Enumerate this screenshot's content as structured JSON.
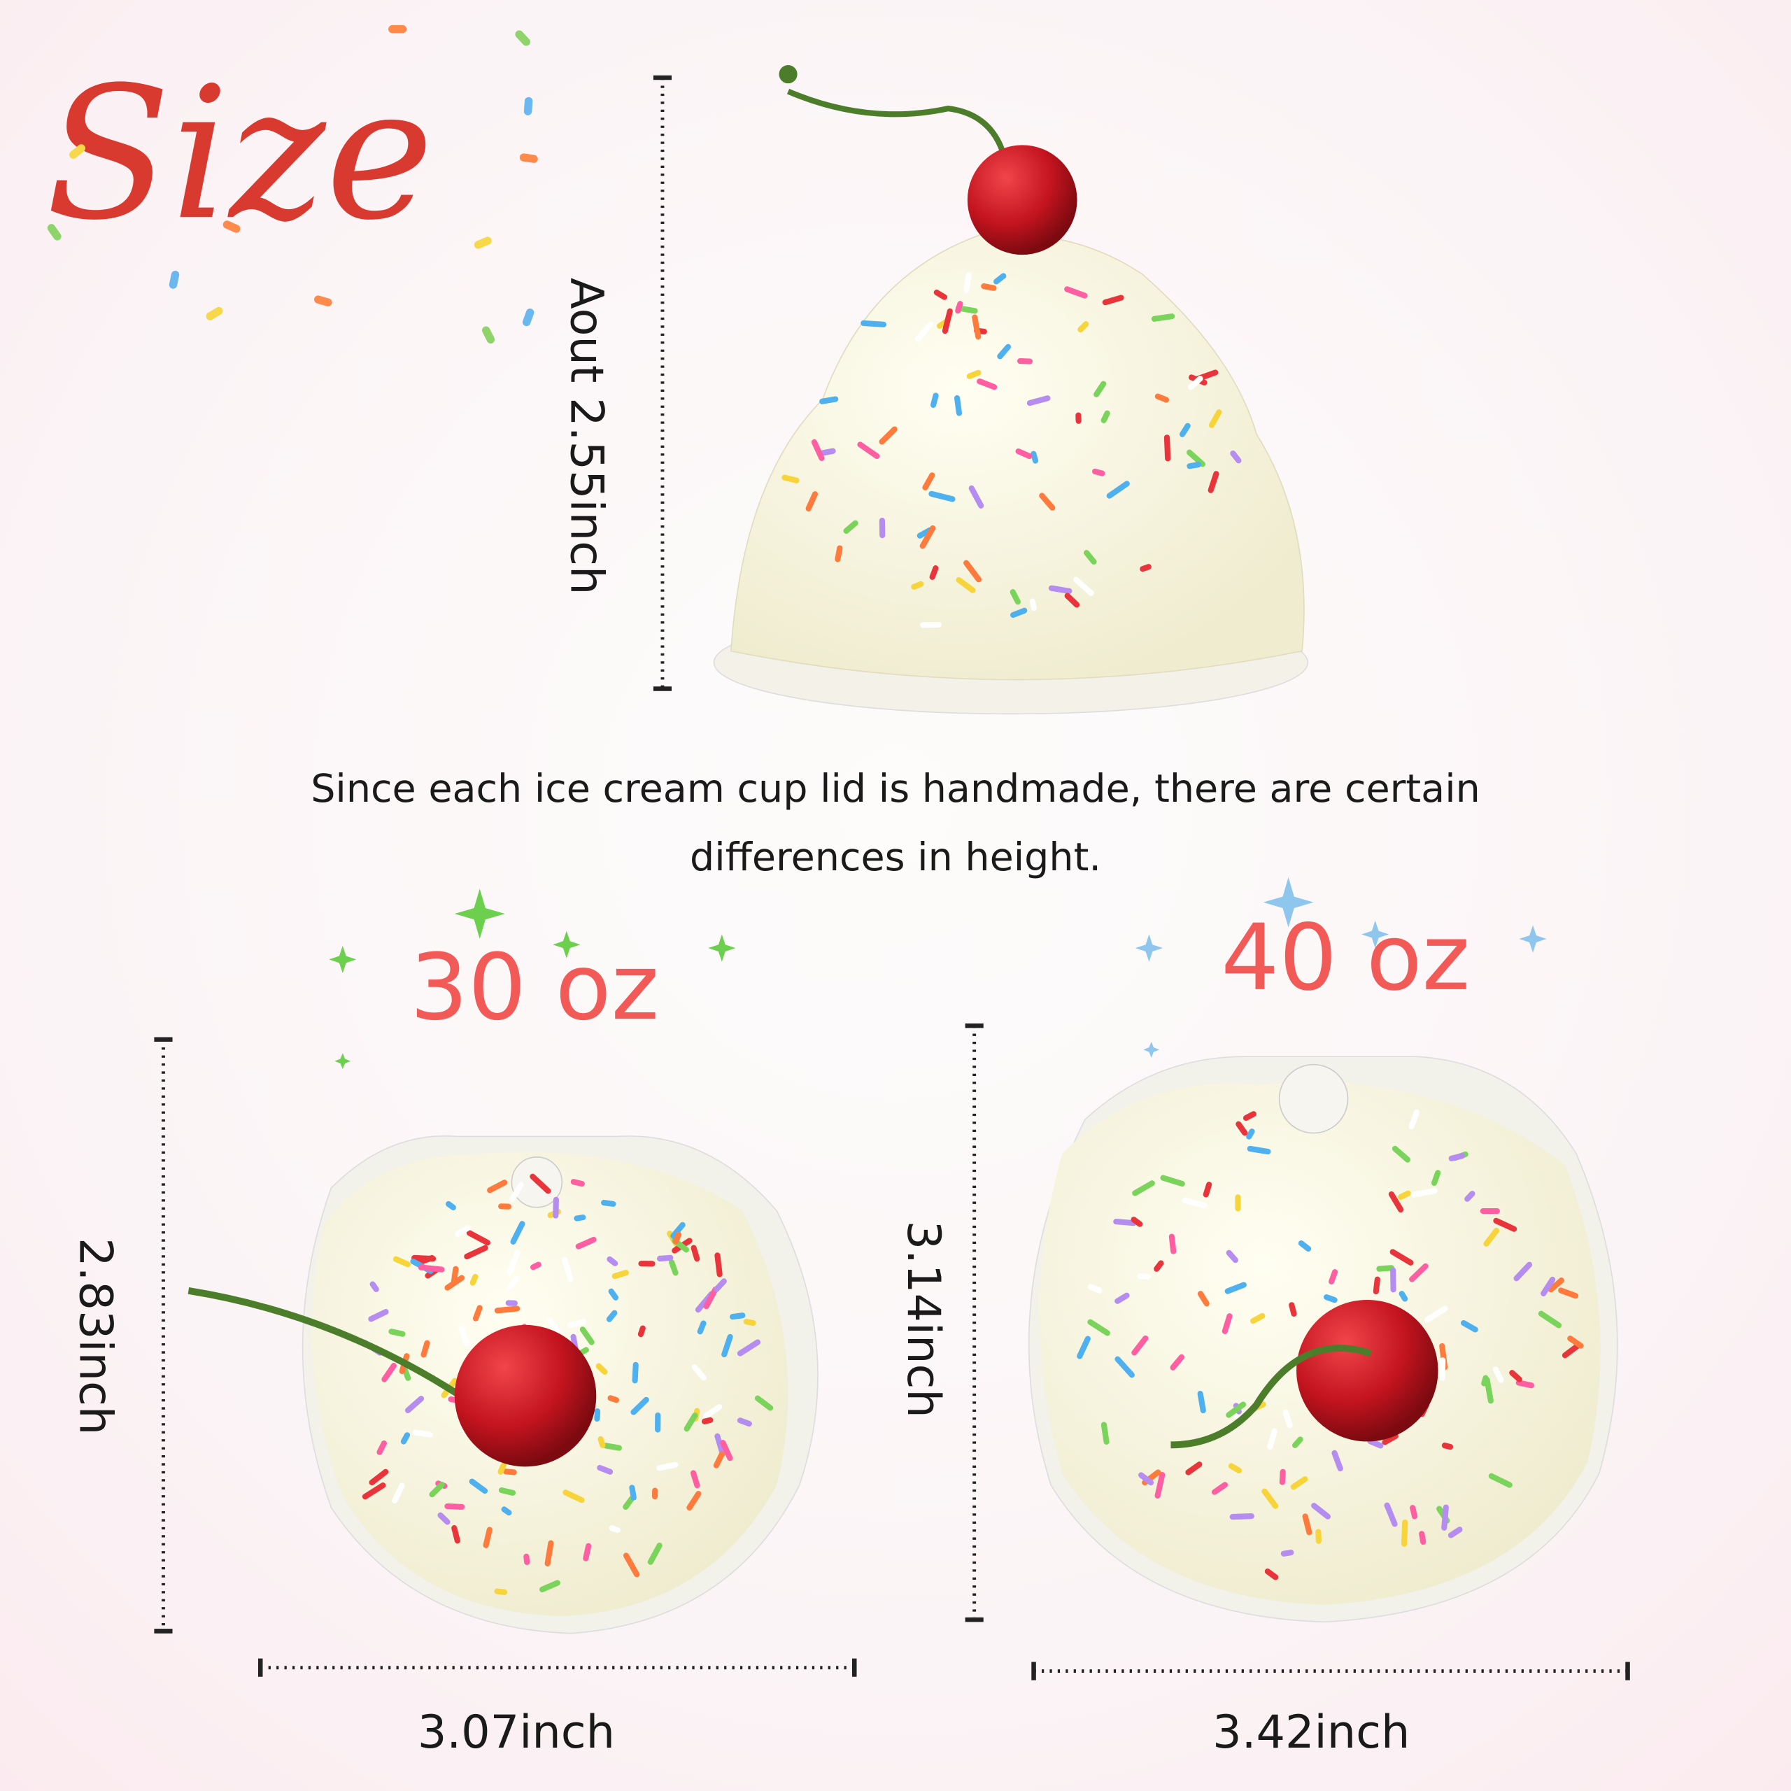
{
  "title": "Size",
  "height_label": "Aout 2.55inch",
  "note": {
    "lines": [
      "Since each ice cream cup lid is handmade, there are certain",
      "differences in height."
    ]
  },
  "sizes": [
    {
      "label": "30 oz",
      "height": "2.83inch",
      "width": "3.07inch"
    },
    {
      "label": "40 oz",
      "height": "3.14inch",
      "width": "3.42inch"
    }
  ]
}
